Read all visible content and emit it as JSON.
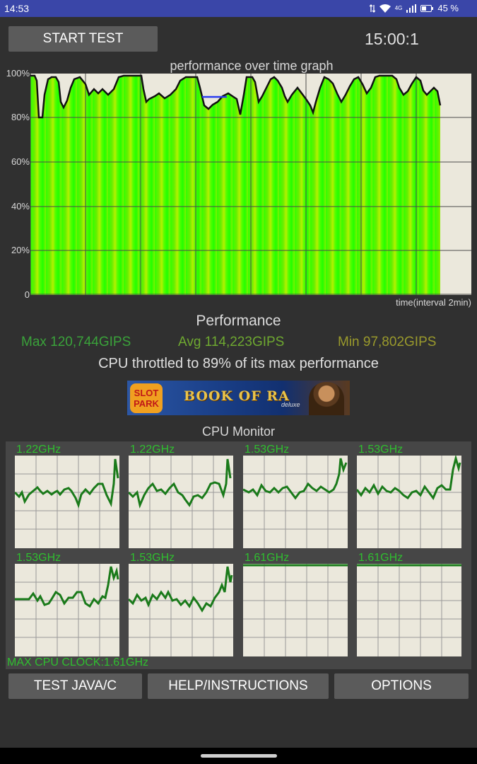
{
  "status_bar": {
    "time": "14:53",
    "network_label": "4G",
    "battery": "45 %"
  },
  "header": {
    "start_button": "START TEST",
    "timer": "15:00:1"
  },
  "graph": {
    "title": "performance over time graph",
    "y_ticks": [
      "100%",
      "80%",
      "60%",
      "40%",
      "20%",
      "0"
    ],
    "x_label": "time(interval 2min)"
  },
  "performance": {
    "heading": "Performance",
    "max": "Max 120,744GIPS",
    "avg": "Avg 114,223GIPS",
    "min": "Min 97,802GIPS",
    "throttle_message": "CPU throttled to 89% of its max performance"
  },
  "ad": {
    "badge": "SLOT PARK",
    "title": "BOOK OF RA",
    "subtitle": "deluxe"
  },
  "cpu_monitor": {
    "title": "CPU Monitor",
    "cores": [
      {
        "freq": "1.22GHz"
      },
      {
        "freq": "1.22GHz"
      },
      {
        "freq": "1.53GHz"
      },
      {
        "freq": "1.53GHz"
      },
      {
        "freq": "1.53GHz"
      },
      {
        "freq": "1.53GHz"
      },
      {
        "freq": "1.61GHz"
      },
      {
        "freq": "1.61GHz"
      }
    ],
    "max_clock": "MAX CPU CLOCK:1.61GHz"
  },
  "footer": {
    "java_button": "TEST JAVA/C",
    "help_button": "HELP/INSTRUCTIONS",
    "options_button": "OPTIONS"
  },
  "colors": {
    "accent_green": "#2fbf2f",
    "graph_fill": "#33ff00",
    "status_bar": "#3a46a8"
  }
}
